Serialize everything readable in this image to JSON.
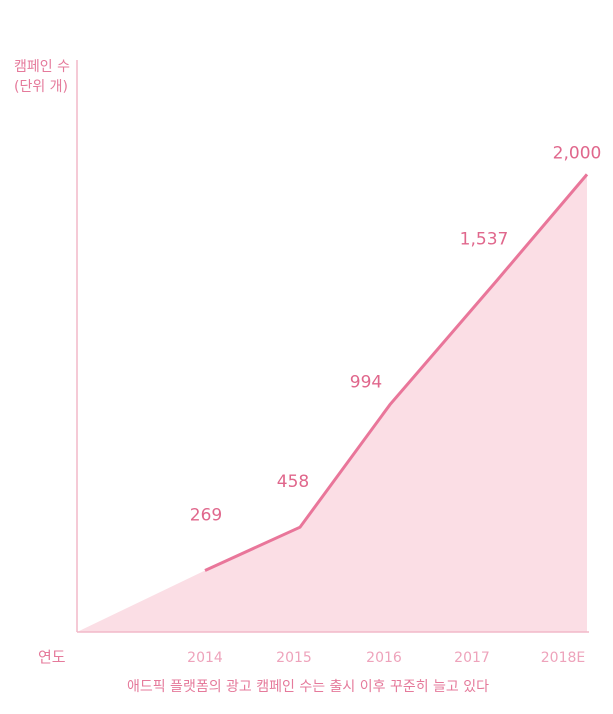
{
  "chart_data": {
    "type": "area",
    "ylabel_lines": [
      "캠페인 수",
      "(단위 개)"
    ],
    "xlabel": "연도",
    "categories": [
      "2014",
      "2015",
      "2016",
      "2017",
      "2018E"
    ],
    "values": [
      269,
      458,
      994,
      1537,
      2000
    ],
    "data_labels": [
      "269",
      "458",
      "994",
      "1,537",
      "2,000"
    ],
    "ylim": [
      0,
      2500
    ],
    "grid": false,
    "caption": "애드픽 플랫폼의 광고 캠페인 수는 출시 이후 꾸준히 늘고 있다",
    "colors": {
      "line": "#e9769a",
      "area": "#fbdee5",
      "axis": "#f2b9c9",
      "text": "#e57a9b",
      "tick": "#eea3bb"
    }
  }
}
